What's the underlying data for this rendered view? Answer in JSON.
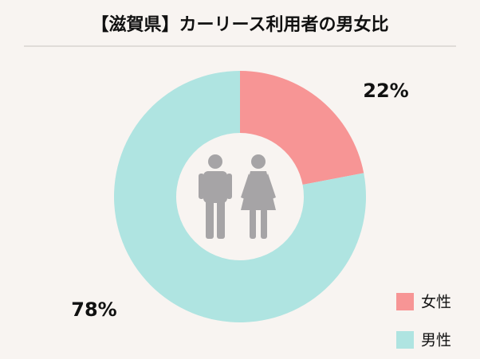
{
  "chart_data": {
    "type": "donut",
    "title": "【滋賀県】カーリース利用者の男女比",
    "categories": [
      "女性",
      "男性"
    ],
    "values": [
      22,
      78
    ],
    "value_labels": [
      "22%",
      "78%"
    ],
    "colors": [
      "#f79595",
      "#afe4e1"
    ]
  }
}
